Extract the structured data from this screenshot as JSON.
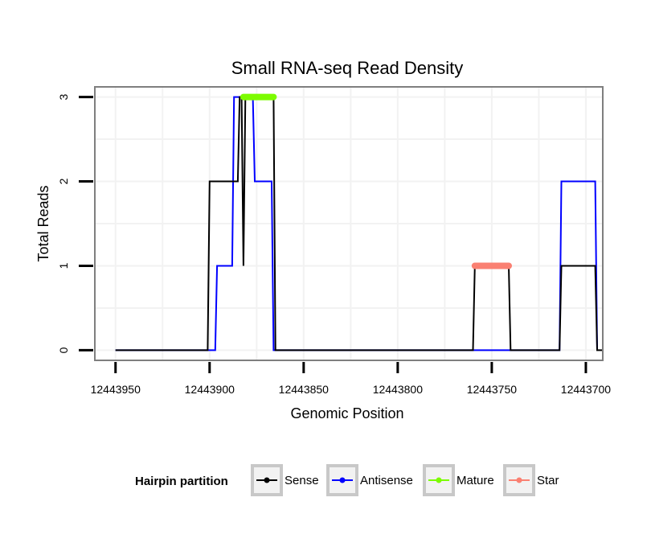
{
  "chart_data": {
    "type": "line",
    "title": "Small RNA-seq Read Density",
    "xlabel": "Genomic Position",
    "ylabel": "Total Reads",
    "x_reversed": true,
    "xlim": [
      12443961,
      12443691
    ],
    "ylim": [
      -0.12,
      3.12
    ],
    "xticks": [
      12443950,
      12443900,
      12443850,
      12443800,
      12443750,
      12443700
    ],
    "xtick_labels": [
      "12443950",
      "12443900",
      "12443850",
      "12443800",
      "12443750",
      "12443700"
    ],
    "yticks": [
      0,
      1,
      2,
      3
    ],
    "ytick_labels": [
      "0",
      "1",
      "2",
      "3"
    ],
    "grid": true,
    "legend": {
      "title": "Hairpin partition",
      "placement": "bottom",
      "entries": [
        "Sense",
        "Antisense",
        "Mature",
        "Star"
      ]
    },
    "series": [
      {
        "name": "Sense",
        "color": "#000000",
        "points": [
          [
            12443950,
            0
          ],
          [
            12443901,
            0
          ],
          [
            12443900,
            2
          ],
          [
            12443885,
            2
          ],
          [
            12443884,
            3
          ],
          [
            12443883,
            3
          ],
          [
            12443882,
            1
          ],
          [
            12443881,
            3
          ],
          [
            12443866,
            3
          ],
          [
            12443865,
            0
          ],
          [
            12443760,
            0
          ],
          [
            12443759,
            1
          ],
          [
            12443741,
            1
          ],
          [
            12443740,
            0
          ],
          [
            12443714,
            0
          ],
          [
            12443713,
            1
          ],
          [
            12443695,
            1
          ],
          [
            12443694,
            0
          ],
          [
            12443691,
            0
          ]
        ]
      },
      {
        "name": "Antisense",
        "color": "#0000ff",
        "points": [
          [
            12443950,
            0
          ],
          [
            12443897,
            0
          ],
          [
            12443896,
            1
          ],
          [
            12443888,
            1
          ],
          [
            12443887,
            3
          ],
          [
            12443877,
            3
          ],
          [
            12443876,
            2
          ],
          [
            12443867,
            2
          ],
          [
            12443866,
            0
          ],
          [
            12443714,
            0
          ],
          [
            12443713,
            2
          ],
          [
            12443695,
            2
          ],
          [
            12443694,
            0
          ]
        ]
      },
      {
        "name": "Mature",
        "color": "#7cfc00",
        "points": [
          [
            12443882,
            3
          ],
          [
            12443866,
            3
          ]
        ]
      },
      {
        "name": "Star",
        "color": "#fa8072",
        "points": [
          [
            12443759,
            1
          ],
          [
            12443741,
            1
          ]
        ]
      }
    ]
  }
}
